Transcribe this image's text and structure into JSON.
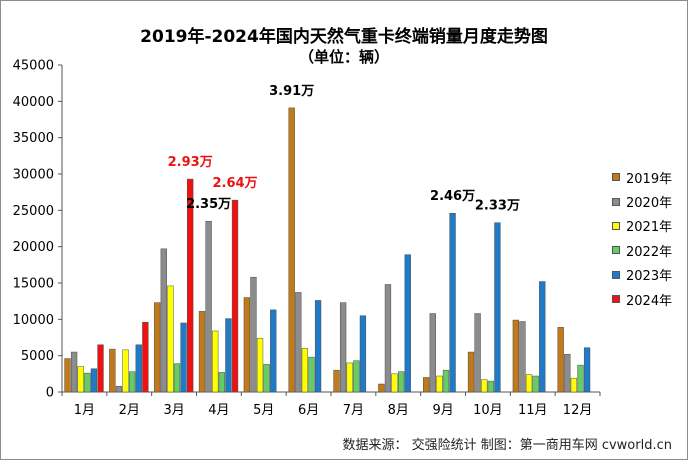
{
  "title": "2019年-2024年国内天然气重卡终端销量月度走势图",
  "subtitle": "（单位：辆）",
  "source": "数据来源：  交强险统计   制图：第一商用车网 cvworld.cn",
  "chart_data": {
    "type": "bar",
    "categories": [
      "1月",
      "2月",
      "3月",
      "4月",
      "5月",
      "6月",
      "7月",
      "8月",
      "9月",
      "10月",
      "11月",
      "12月"
    ],
    "ylim": [
      0,
      45000
    ],
    "yticks": [
      0,
      5000,
      10000,
      15000,
      20000,
      25000,
      30000,
      35000,
      40000,
      45000
    ],
    "grid": false,
    "legend_position": "right",
    "series": [
      {
        "name": "2019年",
        "color": "#c07a1a",
        "values": [
          4600,
          5900,
          12300,
          11100,
          13000,
          39100,
          3000,
          1100,
          2000,
          5500,
          9900,
          8900
        ]
      },
      {
        "name": "2020年",
        "color": "#8c8c8c",
        "values": [
          5500,
          800,
          19700,
          23500,
          15800,
          13700,
          12300,
          14800,
          10800,
          10800,
          9700,
          5200
        ]
      },
      {
        "name": "2021年",
        "color": "#ffff00",
        "values": [
          3500,
          5800,
          14600,
          8400,
          7400,
          6000,
          4000,
          2500,
          2200,
          1700,
          2400,
          1900
        ]
      },
      {
        "name": "2022年",
        "color": "#66cc66",
        "values": [
          2600,
          2800,
          3900,
          2700,
          3800,
          4800,
          4300,
          2800,
          3000,
          1500,
          2200,
          3700
        ]
      },
      {
        "name": "2023年",
        "color": "#1f7ac8",
        "values": [
          3200,
          6500,
          9500,
          10100,
          11300,
          12600,
          10500,
          18900,
          24600,
          23300,
          15200,
          6100
        ]
      },
      {
        "name": "2024年",
        "color": "#ee1111",
        "values": [
          6500,
          9600,
          29300,
          26400,
          null,
          null,
          null,
          null,
          null,
          null,
          null,
          null
        ]
      }
    ],
    "annotations": [
      {
        "text": "2.93万",
        "category": "3月",
        "series": "2024年",
        "color": "#ee1111"
      },
      {
        "text": "2.35万",
        "category": "4月",
        "series": "2020年",
        "color": "#000000"
      },
      {
        "text": "2.64万",
        "category": "4月",
        "series": "2024年",
        "color": "#ee1111"
      },
      {
        "text": "3.91万",
        "category": "6月",
        "series": "2019年",
        "color": "#000000"
      },
      {
        "text": "2.46万",
        "category": "9月",
        "series": "2023年",
        "color": "#000000"
      },
      {
        "text": "2.33万",
        "category": "10月",
        "series": "2023年",
        "color": "#000000"
      }
    ]
  }
}
